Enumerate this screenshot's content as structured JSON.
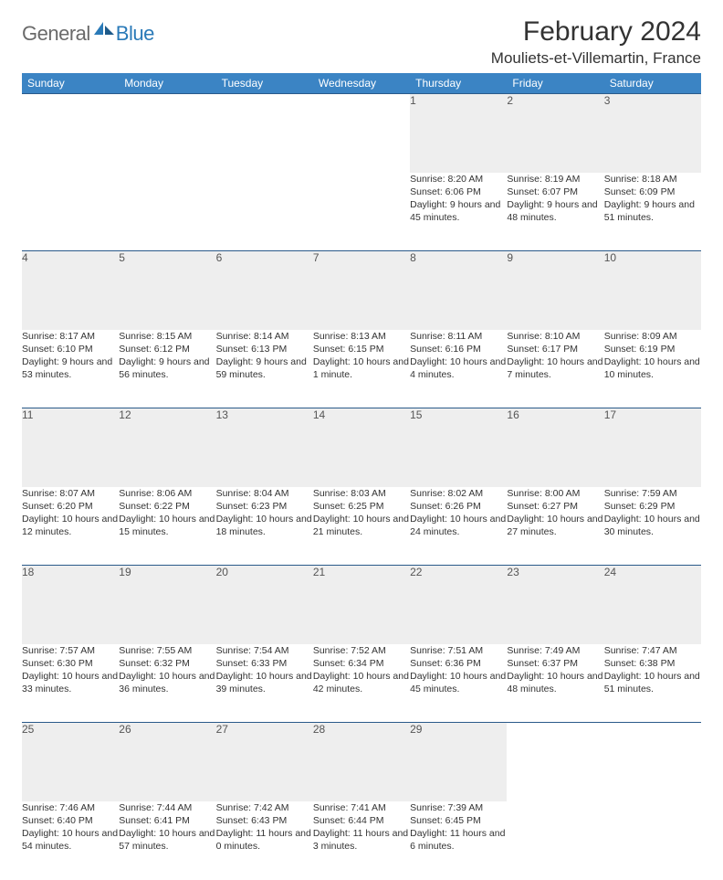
{
  "logo": {
    "text1": "General",
    "text2": "Blue"
  },
  "title": "February 2024",
  "location": "Mouliets-et-Villemartin, France",
  "colors": {
    "header_bg": "#3b84c4",
    "daynum_bg": "#eeeeee",
    "row_border": "#2a5a8a",
    "logo_gray": "#6a6a6a",
    "logo_blue": "#2a7ab8"
  },
  "day_headers": [
    "Sunday",
    "Monday",
    "Tuesday",
    "Wednesday",
    "Thursday",
    "Friday",
    "Saturday"
  ],
  "weeks": [
    [
      null,
      null,
      null,
      null,
      {
        "n": "1",
        "sr": "8:20 AM",
        "ss": "6:06 PM",
        "dl": "9 hours and 45 minutes."
      },
      {
        "n": "2",
        "sr": "8:19 AM",
        "ss": "6:07 PM",
        "dl": "9 hours and 48 minutes."
      },
      {
        "n": "3",
        "sr": "8:18 AM",
        "ss": "6:09 PM",
        "dl": "9 hours and 51 minutes."
      }
    ],
    [
      {
        "n": "4",
        "sr": "8:17 AM",
        "ss": "6:10 PM",
        "dl": "9 hours and 53 minutes."
      },
      {
        "n": "5",
        "sr": "8:15 AM",
        "ss": "6:12 PM",
        "dl": "9 hours and 56 minutes."
      },
      {
        "n": "6",
        "sr": "8:14 AM",
        "ss": "6:13 PM",
        "dl": "9 hours and 59 minutes."
      },
      {
        "n": "7",
        "sr": "8:13 AM",
        "ss": "6:15 PM",
        "dl": "10 hours and 1 minute."
      },
      {
        "n": "8",
        "sr": "8:11 AM",
        "ss": "6:16 PM",
        "dl": "10 hours and 4 minutes."
      },
      {
        "n": "9",
        "sr": "8:10 AM",
        "ss": "6:17 PM",
        "dl": "10 hours and 7 minutes."
      },
      {
        "n": "10",
        "sr": "8:09 AM",
        "ss": "6:19 PM",
        "dl": "10 hours and 10 minutes."
      }
    ],
    [
      {
        "n": "11",
        "sr": "8:07 AM",
        "ss": "6:20 PM",
        "dl": "10 hours and 12 minutes."
      },
      {
        "n": "12",
        "sr": "8:06 AM",
        "ss": "6:22 PM",
        "dl": "10 hours and 15 minutes."
      },
      {
        "n": "13",
        "sr": "8:04 AM",
        "ss": "6:23 PM",
        "dl": "10 hours and 18 minutes."
      },
      {
        "n": "14",
        "sr": "8:03 AM",
        "ss": "6:25 PM",
        "dl": "10 hours and 21 minutes."
      },
      {
        "n": "15",
        "sr": "8:02 AM",
        "ss": "6:26 PM",
        "dl": "10 hours and 24 minutes."
      },
      {
        "n": "16",
        "sr": "8:00 AM",
        "ss": "6:27 PM",
        "dl": "10 hours and 27 minutes."
      },
      {
        "n": "17",
        "sr": "7:59 AM",
        "ss": "6:29 PM",
        "dl": "10 hours and 30 minutes."
      }
    ],
    [
      {
        "n": "18",
        "sr": "7:57 AM",
        "ss": "6:30 PM",
        "dl": "10 hours and 33 minutes."
      },
      {
        "n": "19",
        "sr": "7:55 AM",
        "ss": "6:32 PM",
        "dl": "10 hours and 36 minutes."
      },
      {
        "n": "20",
        "sr": "7:54 AM",
        "ss": "6:33 PM",
        "dl": "10 hours and 39 minutes."
      },
      {
        "n": "21",
        "sr": "7:52 AM",
        "ss": "6:34 PM",
        "dl": "10 hours and 42 minutes."
      },
      {
        "n": "22",
        "sr": "7:51 AM",
        "ss": "6:36 PM",
        "dl": "10 hours and 45 minutes."
      },
      {
        "n": "23",
        "sr": "7:49 AM",
        "ss": "6:37 PM",
        "dl": "10 hours and 48 minutes."
      },
      {
        "n": "24",
        "sr": "7:47 AM",
        "ss": "6:38 PM",
        "dl": "10 hours and 51 minutes."
      }
    ],
    [
      {
        "n": "25",
        "sr": "7:46 AM",
        "ss": "6:40 PM",
        "dl": "10 hours and 54 minutes."
      },
      {
        "n": "26",
        "sr": "7:44 AM",
        "ss": "6:41 PM",
        "dl": "10 hours and 57 minutes."
      },
      {
        "n": "27",
        "sr": "7:42 AM",
        "ss": "6:43 PM",
        "dl": "11 hours and 0 minutes."
      },
      {
        "n": "28",
        "sr": "7:41 AM",
        "ss": "6:44 PM",
        "dl": "11 hours and 3 minutes."
      },
      {
        "n": "29",
        "sr": "7:39 AM",
        "ss": "6:45 PM",
        "dl": "11 hours and 6 minutes."
      },
      null,
      null
    ]
  ],
  "labels": {
    "sunrise": "Sunrise: ",
    "sunset": "Sunset: ",
    "daylight": "Daylight: "
  }
}
